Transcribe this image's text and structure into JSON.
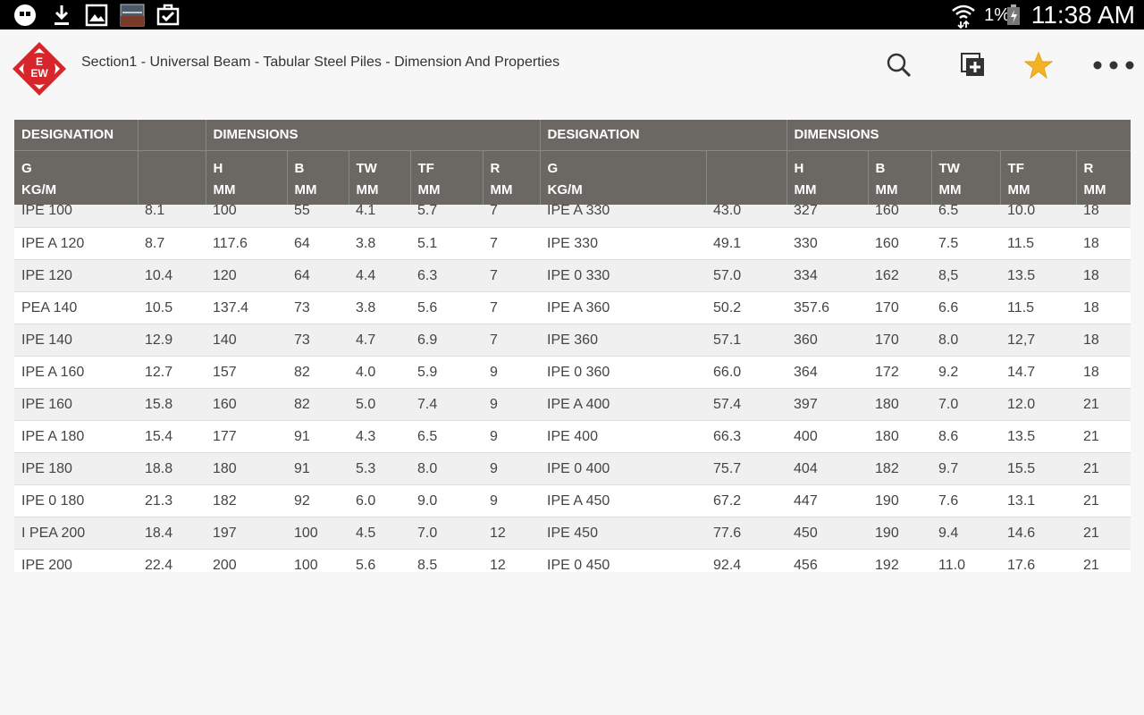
{
  "status_bar": {
    "time": "11:38 AM",
    "battery_percent": "1%"
  },
  "app": {
    "title": "Section1 - Universal Beam - Tabular Steel Piles - Dimension And Properties",
    "logo_text": "EEW"
  },
  "table": {
    "group_headers": [
      "DESIGNATION",
      "DIMENSIONS",
      "DESIGNATION",
      "DIMENSIONS"
    ],
    "columns": [
      {
        "line1": "G",
        "line2": "KG/M"
      },
      {
        "line1": "",
        "line2": ""
      },
      {
        "line1": "H",
        "line2": "MM"
      },
      {
        "line1": "B",
        "line2": "MM"
      },
      {
        "line1": "TW",
        "line2": "MM"
      },
      {
        "line1": "TF",
        "line2": "MM"
      },
      {
        "line1": "R",
        "line2": "MM"
      },
      {
        "line1": "G",
        "line2": "KG/M"
      },
      {
        "line1": "",
        "line2": ""
      },
      {
        "line1": "H",
        "line2": "MM"
      },
      {
        "line1": "B",
        "line2": "MM"
      },
      {
        "line1": "TW",
        "line2": "MM"
      },
      {
        "line1": "TF",
        "line2": "MM"
      },
      {
        "line1": "R",
        "line2": "MM"
      }
    ],
    "rows": [
      [
        "IPE 100",
        "8.1",
        "100",
        "55",
        "4.1",
        "5.7",
        "7",
        "IPE A 330",
        "43.0",
        "327",
        "160",
        "6.5",
        "10.0",
        "18"
      ],
      [
        "IPE A 120",
        "8.7",
        "117.6",
        "64",
        "3.8",
        "5.1",
        "7",
        "IPE 330",
        "49.1",
        "330",
        "160",
        "7.5",
        "11.5",
        "18"
      ],
      [
        "IPE 120",
        "10.4",
        "120",
        "64",
        "4.4",
        "6.3",
        "7",
        "IPE 0 330",
        "57.0",
        "334",
        "162",
        "8,5",
        "13.5",
        "18"
      ],
      [
        "PEA 140",
        "10.5",
        "137.4",
        "73",
        "3.8",
        "5.6",
        "7",
        "IPE A 360",
        "50.2",
        "357.6",
        "170",
        "6.6",
        "11.5",
        "18"
      ],
      [
        "IPE 140",
        "12.9",
        "140",
        "73",
        "4.7",
        "6.9",
        "7",
        "IPE 360",
        "57.1",
        "360",
        "170",
        "8.0",
        "12,7",
        "18"
      ],
      [
        "IPE A 160",
        "12.7",
        "157",
        "82",
        "4.0",
        "5.9",
        "9",
        "IPE 0 360",
        "66.0",
        "364",
        "172",
        "9.2",
        "14.7",
        "18"
      ],
      [
        "IPE 160",
        "15.8",
        "160",
        "82",
        "5.0",
        "7.4",
        "9",
        "IPE A 400",
        "57.4",
        "397",
        "180",
        "7.0",
        "12.0",
        "21"
      ],
      [
        "IPE A 180",
        "15.4",
        "177",
        "91",
        "4.3",
        "6.5",
        "9",
        "IPE 400",
        "66.3",
        "400",
        "180",
        "8.6",
        "13.5",
        "21"
      ],
      [
        "IPE 180",
        "18.8",
        "180",
        "91",
        "5.3",
        "8.0",
        "9",
        "IPE 0 400",
        "75.7",
        "404",
        "182",
        "9.7",
        "15.5",
        "21"
      ],
      [
        "IPE 0 180",
        "21.3",
        "182",
        "92",
        "6.0",
        "9.0",
        "9",
        "IPE A 450",
        "67.2",
        "447",
        "190",
        "7.6",
        "13.1",
        "21"
      ],
      [
        "I PEA 200",
        "18.4",
        "197",
        "100",
        "4.5",
        "7.0",
        "12",
        "IPE 450",
        "77.6",
        "450",
        "190",
        "9.4",
        "14.6",
        "21"
      ],
      [
        "IPE 200",
        "22.4",
        "200",
        "100",
        "5.6",
        "8.5",
        "12",
        "IPE 0 450",
        "92.4",
        "456",
        "192",
        "11.0",
        "17.6",
        "21"
      ]
    ]
  },
  "colors": {
    "header_bg": "#6b6864",
    "status_bar_bg": "#000000",
    "logo_red": "#d7262b"
  }
}
